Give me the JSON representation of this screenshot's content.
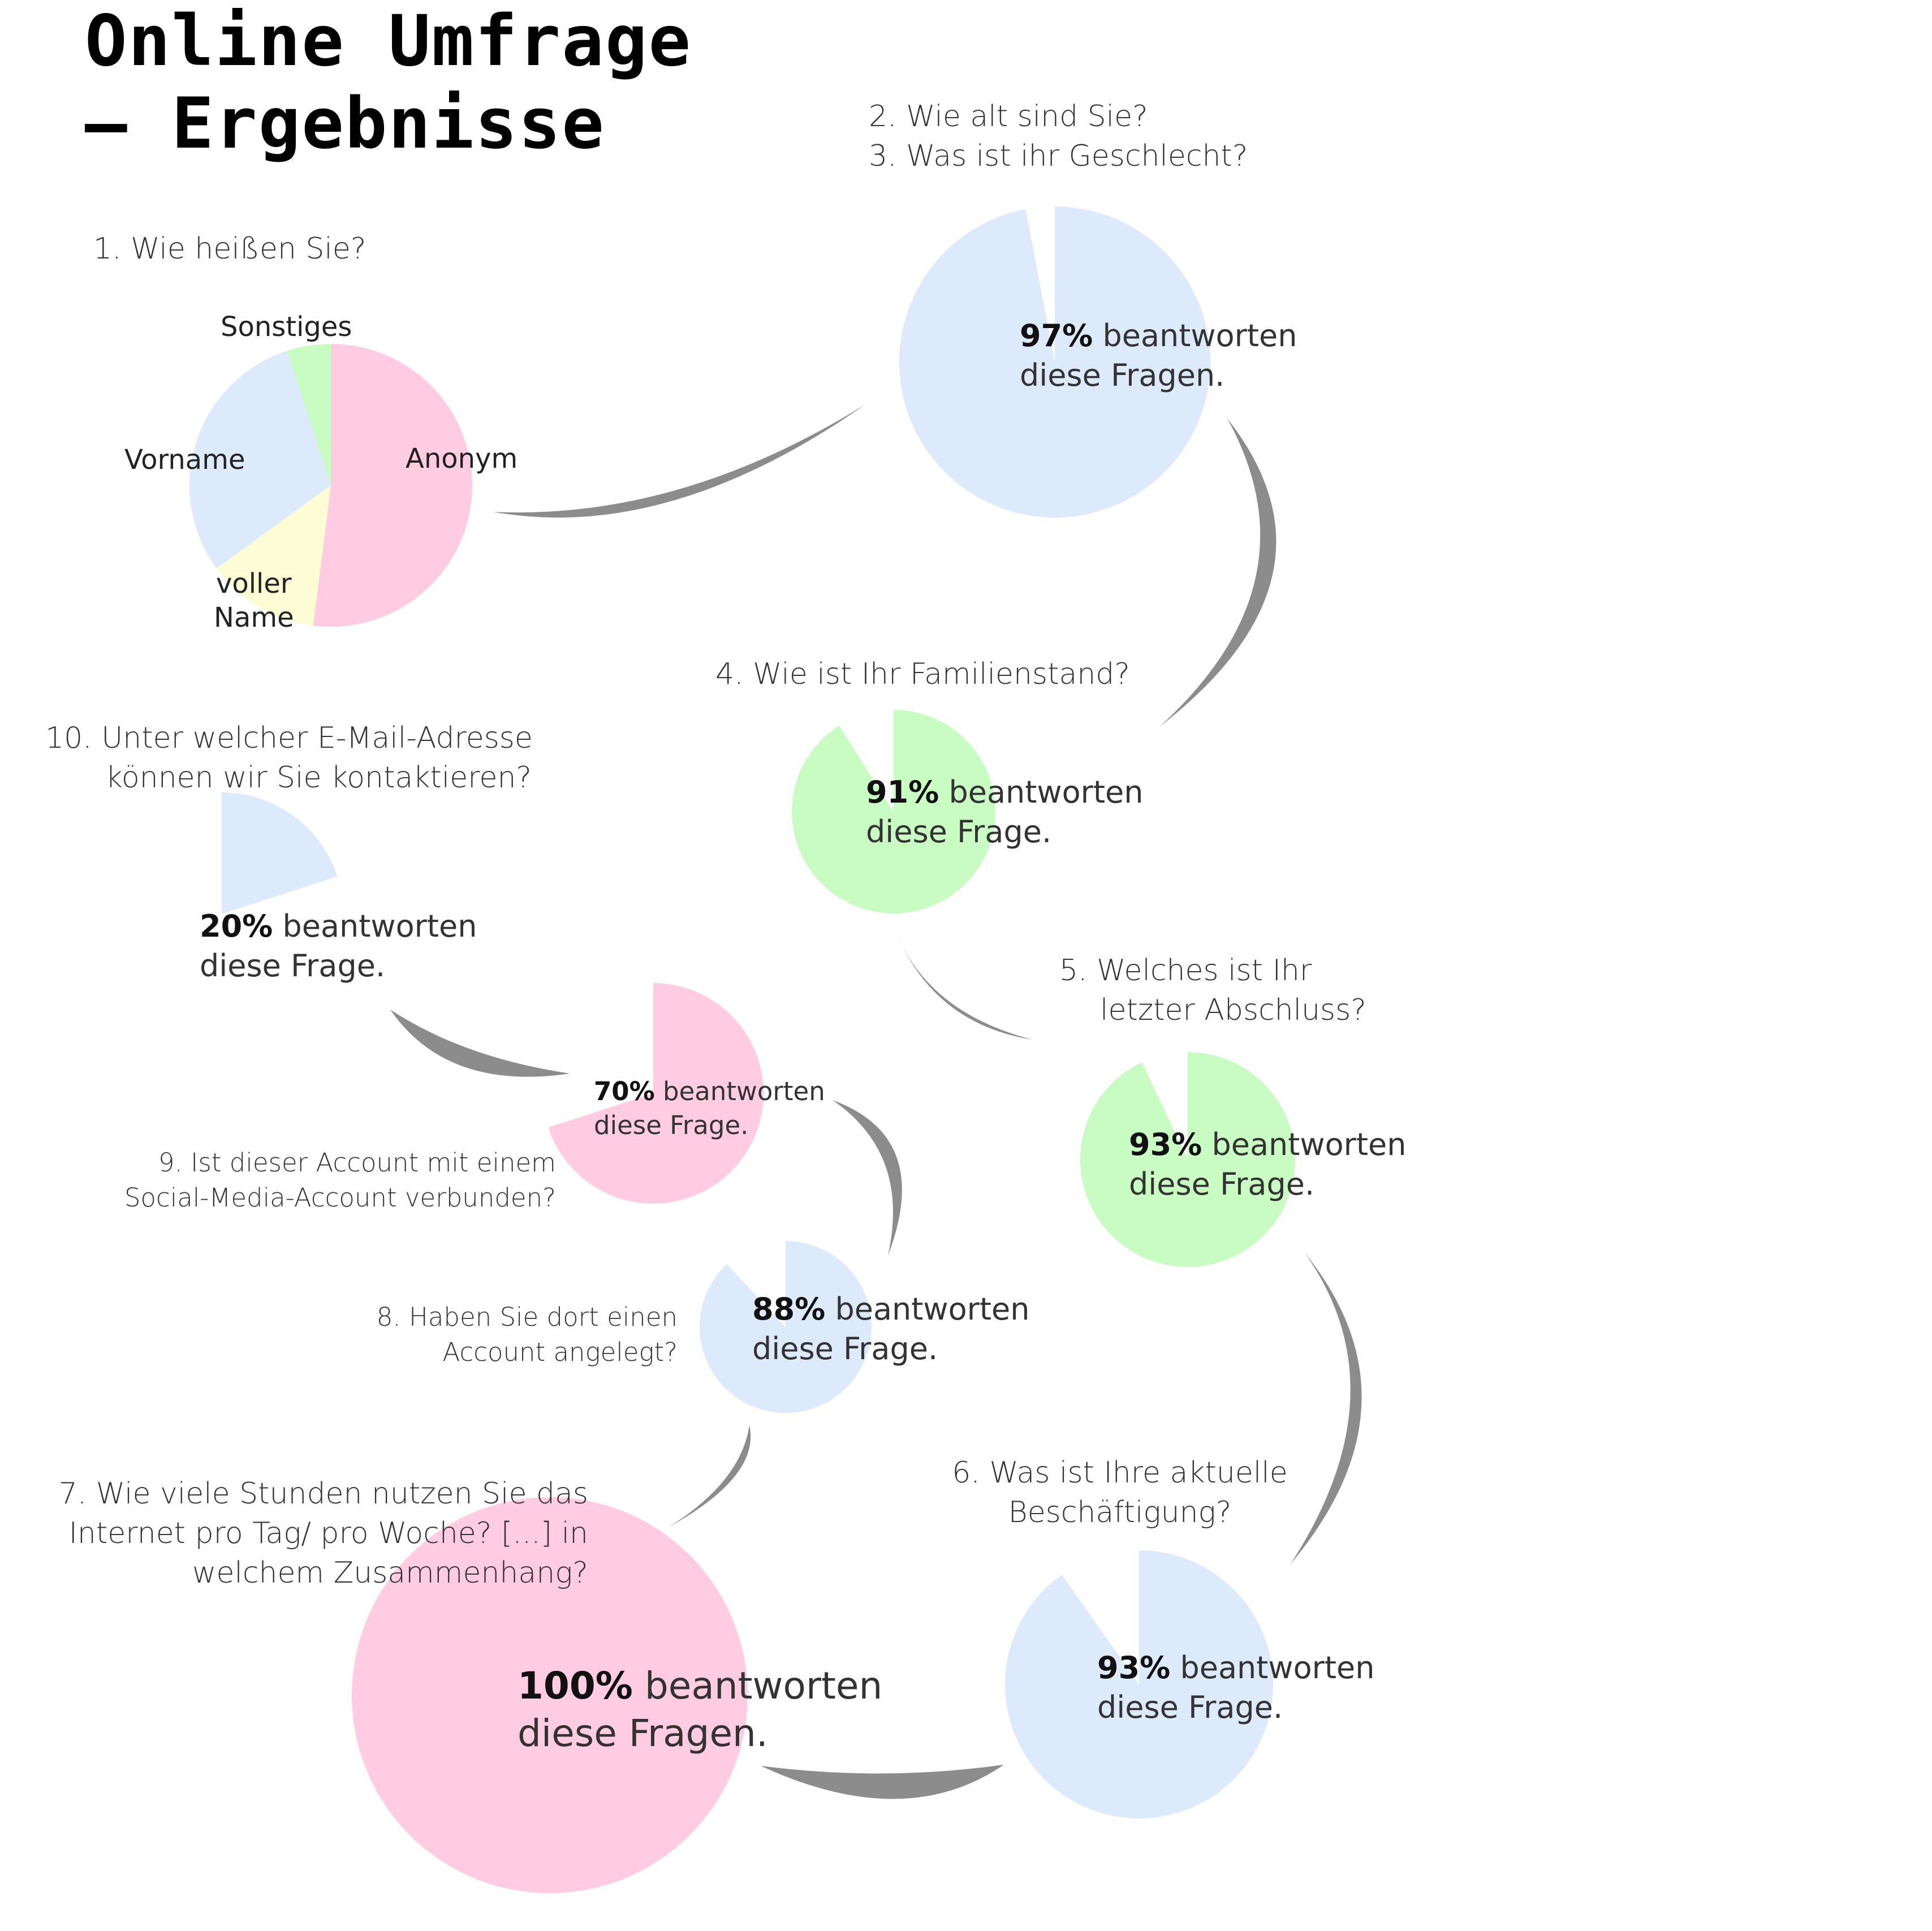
{
  "title": {
    "line1": "Online Umfrage",
    "line2": "– Ergebnisse"
  },
  "colors": {
    "pink": "#FFCCE2",
    "blue": "#DCEAFB",
    "green": "#C8FCC2",
    "yellow": "#FDFDD5",
    "arrow": "#8C8C8C"
  },
  "questions": {
    "q1": "1. Wie heißen Sie?",
    "q23_l1": "2. Wie alt sind Sie?",
    "q23_l2": "3. Was ist ihr Geschlecht?",
    "q4": "4. Wie ist Ihr Familienstand?",
    "q5_l1": "5. Welches ist Ihr",
    "q5_l2": "letzter Abschluss?",
    "q6_l1": "6. Was ist Ihre aktuelle",
    "q6_l2": "Beschäftigung?",
    "q7_l1": "7. Wie viele Stunden nutzen Sie das",
    "q7_l2": "Internet pro Tag/ pro Woche? [...] in",
    "q7_l3": "welchem Zusammenhang?",
    "q8_l1": "8. Haben Sie dort einen",
    "q8_l2": "Account angelegt?",
    "q9_l1": "9. Ist dieser Account mit einem",
    "q9_l2": "Social-Media-Account verbunden?",
    "q10_l1": "10. Unter welcher E-Mail-Adresse",
    "q10_l2": "können wir Sie kontaktieren?"
  },
  "chart_data": [
    {
      "type": "pie",
      "title": "1. Wie heißen Sie?",
      "categories": [
        "Anonym",
        "voller Name",
        "Vorname",
        "Sonstiges"
      ],
      "values": [
        52,
        13,
        30,
        5
      ],
      "colors": [
        "#FFCCE2",
        "#FDFDD5",
        "#DCEAFB",
        "#C8FCC2"
      ],
      "labels": {
        "anonym": "Anonym",
        "voller": "voller",
        "name": "Name",
        "vorname": "Vorname",
        "sonstiges": "Sonstiges"
      }
    },
    {
      "type": "pie",
      "title": "2. Wie alt sind Sie? / 3. Was ist ihr Geschlecht?",
      "answered_pct": 97,
      "pct_text": "97%",
      "text1": "beantworten",
      "text2": "diese Fragen.",
      "color": "#DCEAFB"
    },
    {
      "type": "pie",
      "title": "4. Wie ist Ihr Familienstand?",
      "answered_pct": 91,
      "pct_text": "91%",
      "text1": "beantworten",
      "text2": "diese Frage.",
      "color": "#C8FCC2"
    },
    {
      "type": "pie",
      "title": "5. Welches ist Ihr letzter Abschluss?",
      "answered_pct": 93,
      "pct_text": "93%",
      "text1": "beantworten",
      "text2": "diese Frage.",
      "color": "#C8FCC2"
    },
    {
      "type": "pie",
      "title": "6. Was ist Ihre aktuelle Beschäftigung?",
      "answered_pct": 93,
      "pct_text": "93%",
      "text1": "beantworten",
      "text2": "diese Frage.",
      "color": "#DCEAFB"
    },
    {
      "type": "pie",
      "title": "7. Wie viele Stunden nutzen Sie das Internet pro Tag/ pro Woche? [...] in welchem Zusammenhang?",
      "answered_pct": 100,
      "pct_text": "100%",
      "text1": "beantworten",
      "text2": "diese Fragen.",
      "color": "#FFCCE2"
    },
    {
      "type": "pie",
      "title": "8. Haben Sie dort einen Account angelegt?",
      "answered_pct": 88,
      "pct_text": "88%",
      "text1": "beantworten",
      "text2": "diese Frage.",
      "color": "#DCEAFB"
    },
    {
      "type": "pie",
      "title": "9. Ist dieser Account mit einem Social-Media-Account verbunden?",
      "answered_pct": 70,
      "pct_text": "70%",
      "text1": "beantworten",
      "text2": "diese Frage.",
      "color": "#FFCCE2"
    },
    {
      "type": "pie",
      "title": "10. Unter welcher E-Mail-Adresse können wir Sie kontaktieren?",
      "answered_pct": 20,
      "pct_text": "20%",
      "text1": "beantworten",
      "text2": "diese Frage.",
      "color": "#DCEAFB"
    }
  ]
}
